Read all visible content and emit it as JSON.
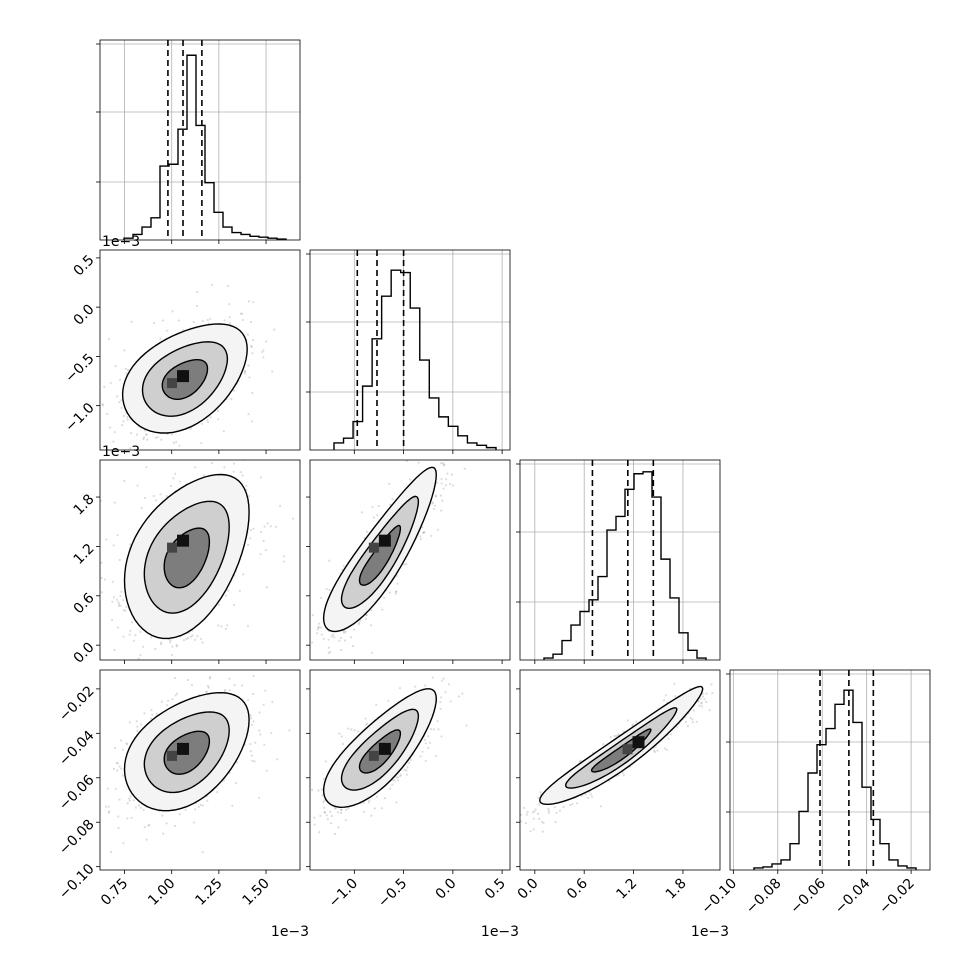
{
  "chart_data": {
    "type": "corner",
    "params": [
      {
        "ticks": [
          0.75,
          1.0,
          1.25,
          1.5
        ],
        "tick_labels": [
          "0.75",
          "1.00",
          "1.25",
          "1.50"
        ],
        "range": [
          0.00062,
          0.00168
        ],
        "scale_text": "1e−3",
        "hist": {
          "counts": [
            1,
            3,
            7,
            12,
            40,
            41,
            60,
            100,
            62,
            31,
            15,
            7,
            4,
            3,
            2,
            1.5,
            1,
            0.5
          ],
          "quantiles": [
            0.98,
            1.06,
            1.16
          ],
          "ymax": 105
        }
      },
      {
        "ticks": [
          -1.0,
          -0.5,
          0.0,
          0.5
        ],
        "tick_labels": [
          "−1.0",
          "−0.5",
          "0.0",
          "0.5"
        ],
        "range": [
          -0.00145,
          0.00058
        ],
        "scale_text": "1e−3",
        "hist": {
          "counts": [
            3,
            5,
            12,
            27,
            47,
            65,
            76,
            75,
            60,
            38,
            22,
            14,
            10,
            6,
            3,
            2,
            1
          ],
          "quantiles": [
            -0.97,
            -0.77,
            -0.5
          ],
          "ymax": 82
        }
      },
      {
        "ticks": [
          0.0,
          0.6,
          1.2,
          1.8
        ],
        "tick_labels": [
          "0.0",
          "0.6",
          "1.2",
          "1.8"
        ],
        "range": [
          -0.00018,
          0.00225
        ],
        "scale_text": "1e−3",
        "hist": {
          "counts": [
            1,
            3,
            10,
            18,
            25,
            31,
            43,
            67,
            74,
            88,
            96,
            97,
            84,
            52,
            32,
            14,
            5,
            1
          ],
          "quantiles": [
            0.7,
            1.13,
            1.44
          ],
          "ymax": 100
        }
      },
      {
        "ticks": [
          -0.1,
          -0.08,
          -0.06,
          -0.04,
          -0.02
        ],
        "tick_labels": [
          "−0.10",
          "−0.08",
          "−0.06",
          "−0.04",
          "−0.02"
        ],
        "range": [
          -0.1015,
          -0.0115
        ],
        "scale_text": "",
        "hist": {
          "counts": [
            1,
            1.5,
            3,
            5,
            13,
            29,
            48,
            62,
            70,
            82,
            89,
            73,
            41,
            25,
            13,
            5,
            2,
            1
          ],
          "quantiles": [
            -0.061,
            -0.048,
            -0.037
          ],
          "ymax": 96
        }
      }
    ],
    "pairs": [
      {
        "row": 1,
        "col": 0,
        "center": [
          1.07,
          -0.74
        ],
        "peak": [
          1.06,
          -0.7
        ],
        "spread": [
          0.15,
          0.25
        ],
        "rho": 0.42,
        "scale_x": 0.001,
        "scale_y": 0.001
      },
      {
        "row": 2,
        "col": 0,
        "center": [
          1.08,
          1.05
        ],
        "peak": [
          1.06,
          1.27
        ],
        "spread": [
          0.15,
          0.45
        ],
        "rho": 0.42,
        "scale_x": 0.001,
        "scale_y": 0.001
      },
      {
        "row": 2,
        "col": 1,
        "center": [
          -0.74,
          1.05
        ],
        "peak": [
          -0.69,
          1.27
        ],
        "spread": [
          0.26,
          0.45
        ],
        "rho": 0.88,
        "scale_x": 0.001,
        "scale_y": 0.001
      },
      {
        "row": 3,
        "col": 0,
        "center": [
          1.08,
          -0.049
        ],
        "peak": [
          1.06,
          -0.047
        ],
        "spread": [
          0.15,
          0.012
        ],
        "rho": 0.42,
        "scale_x": 0.001,
        "scale_y": 1
      },
      {
        "row": 3,
        "col": 1,
        "center": [
          -0.74,
          -0.049
        ],
        "peak": [
          -0.69,
          -0.047
        ],
        "spread": [
          0.26,
          0.012
        ],
        "rho": 0.78,
        "scale_x": 0.001,
        "scale_y": 1
      },
      {
        "row": 3,
        "col": 2,
        "center": [
          1.05,
          -0.049
        ],
        "peak": [
          1.26,
          -0.044
        ],
        "spread": [
          0.45,
          0.012
        ],
        "rho": 0.95,
        "scale_x": 0.001,
        "scale_y": 1
      }
    ],
    "levels": [
      "0.39",
      "0.86",
      "1.35"
    ],
    "grid": true,
    "colors": {
      "line": "#000000",
      "points": "#9a9a9a",
      "grid": "#b0b0b0"
    }
  }
}
